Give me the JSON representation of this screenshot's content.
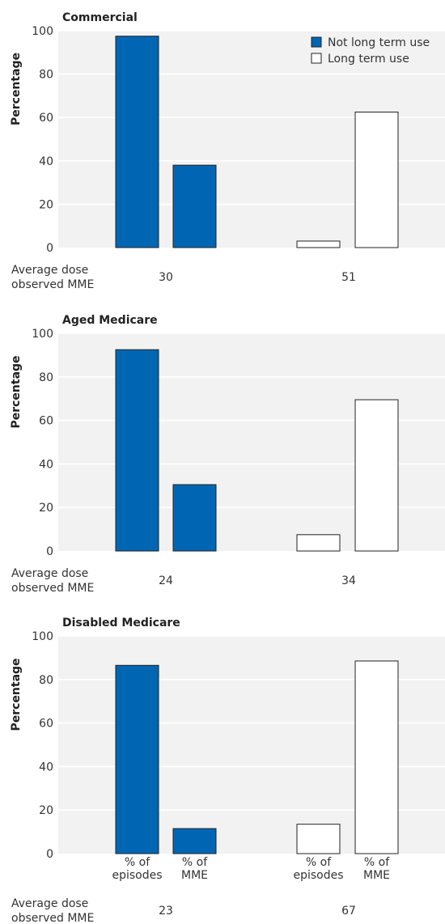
{
  "colors": {
    "not_long_term": "#0066b3",
    "long_term": "#ffffff",
    "outline": "#222222",
    "plot_bg": "#f2f2f2"
  },
  "legend": {
    "placement": "top-right",
    "entries": [
      "Not long term use",
      "Long term use"
    ]
  },
  "ylabel": "Percentage",
  "dose_label": [
    "Average dose",
    "observed MME"
  ],
  "chart_data": [
    {
      "type": "bar",
      "title": "Commercial",
      "ylabel": "Percentage",
      "ylim": [
        0,
        100
      ],
      "yticks": [
        0,
        20,
        40,
        60,
        80,
        100
      ],
      "grid": true,
      "groups": [
        {
          "series": "Not long term use",
          "categories": [
            "% of episodes",
            "% of MME"
          ],
          "values": [
            97.5,
            38
          ],
          "average_dose_mme": "30"
        },
        {
          "series": "Long term use",
          "categories": [
            "% of episodes",
            "% of MME"
          ],
          "values": [
            3,
            62.5
          ],
          "average_dose_mme": "51"
        }
      ]
    },
    {
      "type": "bar",
      "title": "Aged Medicare",
      "ylabel": "Percentage",
      "ylim": [
        0,
        100
      ],
      "yticks": [
        0,
        20,
        40,
        60,
        80,
        100
      ],
      "grid": true,
      "groups": [
        {
          "series": "Not long term use",
          "categories": [
            "% of episodes",
            "% of MME"
          ],
          "values": [
            92.5,
            30.5
          ],
          "average_dose_mme": "24"
        },
        {
          "series": "Long term use",
          "categories": [
            "% of episodes",
            "% of MME"
          ],
          "values": [
            7.5,
            69.5
          ],
          "average_dose_mme": "34"
        }
      ]
    },
    {
      "type": "bar",
      "title": "Disabled Medicare",
      "ylabel": "Percentage",
      "ylim": [
        0,
        100
      ],
      "yticks": [
        0,
        20,
        40,
        60,
        80,
        100
      ],
      "grid": true,
      "show_category_labels": true,
      "groups": [
        {
          "series": "Not long term use",
          "categories": [
            "% of episodes",
            "% of MME"
          ],
          "values": [
            86.5,
            11.5
          ],
          "average_dose_mme": "23"
        },
        {
          "series": "Long term use",
          "categories": [
            "% of episodes",
            "% of MME"
          ],
          "values": [
            13.5,
            88.5
          ],
          "average_dose_mme": "67"
        }
      ]
    }
  ]
}
